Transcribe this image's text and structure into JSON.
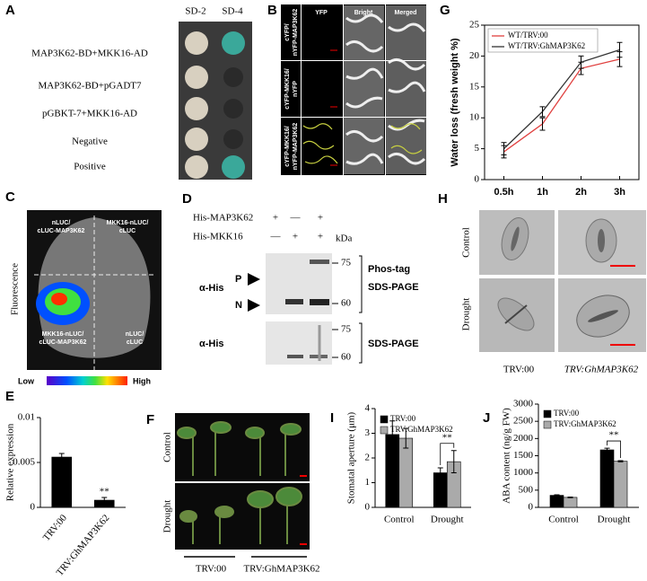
{
  "panels": {
    "A": {
      "label": "A",
      "columns": [
        "SD-2",
        "SD-4"
      ],
      "rows": [
        "MAP3K62-BD+MKK16-AD",
        "MAP3K62-BD+pGADT7",
        "pGBKT-7+MKK16-AD",
        "Negative",
        "Positive"
      ]
    },
    "B": {
      "label": "B",
      "columns": [
        "YFP",
        "Bright",
        "Merged"
      ],
      "rows": [
        [
          "cYFP/",
          "nYFP-MAP3K62"
        ],
        [
          "cYFP-MKK16/",
          "nYFP"
        ],
        [
          "cYFP-MKK16/",
          "nYFP-MAP3K62"
        ]
      ]
    },
    "C": {
      "label": "C",
      "quadrants": [
        [
          "nLUC/",
          "cLUC-MAP3K62"
        ],
        [
          "MKK16-nLUC/",
          "cLUC"
        ],
        [
          "MKK16-nLUC/",
          "cLUC-MAP3K62"
        ],
        [
          "nLUC/",
          "cLUC"
        ]
      ],
      "axis_label": "Fluorescence",
      "scale": [
        "Low",
        "High"
      ]
    },
    "D": {
      "label": "D",
      "proteins": [
        "His-MAP3K62",
        "His-MKK16"
      ],
      "lanes": [
        [
          "+",
          "—",
          "+"
        ],
        [
          "—",
          "+",
          "+"
        ]
      ],
      "unit": "kDa",
      "blots": [
        {
          "antibody": "α-His",
          "markers": [
            "75",
            "60"
          ],
          "method": [
            "Phos-tag",
            "SDS-PAGE"
          ],
          "bands": [
            "P",
            "N"
          ]
        },
        {
          "antibody": "α-His",
          "markers": [
            "75",
            "60"
          ],
          "method": [
            "SDS-PAGE"
          ]
        }
      ]
    },
    "F": {
      "label": "F",
      "rows": [
        "Control",
        "Drought"
      ],
      "columns": [
        "TRV:00",
        "TRV:GhMAP3K62"
      ]
    },
    "H": {
      "label": "H",
      "rows": [
        "Control",
        "Drought"
      ],
      "columns": [
        "TRV:00",
        "TRV:GhMAP3K62"
      ]
    }
  },
  "chart_data": [
    {
      "type": "line",
      "panel": "G",
      "y_label": "Water loss (fresh weight %)",
      "categories": [
        "0.5h",
        "1h",
        "2h",
        "3h"
      ],
      "series": [
        {
          "name": "WT/TRV:00",
          "color": "#e0403f",
          "values": [
            4.5,
            9,
            18,
            19.5
          ],
          "errors": [
            1,
            1,
            1,
            1.2
          ]
        },
        {
          "name": "WT/TRV:GhMAP3K62",
          "color": "#333333",
          "values": [
            5,
            11,
            19,
            21
          ],
          "errors": [
            1,
            0.8,
            1,
            1.2
          ]
        }
      ],
      "ylim": [
        0,
        25
      ],
      "yticks": [
        0,
        5,
        10,
        15,
        20,
        25
      ]
    },
    {
      "type": "bar",
      "panel": "E",
      "y_label": "Relative expression",
      "categories": [
        "TRV:00",
        "TRV:GhMAP3K62"
      ],
      "series": [
        {
          "color": "#000000",
          "values": [
            0.0056,
            0.0008
          ],
          "errors": [
            0.0004,
            0.0003
          ]
        }
      ],
      "ylim": [
        0,
        0.01
      ],
      "yticks": [
        0,
        0.005,
        0.01
      ],
      "annotation": "**"
    },
    {
      "type": "bar",
      "panel": "I",
      "y_label": "Stomatal aperture (μm)",
      "categories": [
        "Control",
        "Drought"
      ],
      "series": [
        {
          "name": "TRV:00",
          "color": "#000000",
          "values": [
            2.95,
            1.4
          ],
          "errors": [
            0.55,
            0.2
          ]
        },
        {
          "name": "TRV:GhMAP3K62",
          "color": "#aaaaaa",
          "values": [
            2.8,
            1.85
          ],
          "errors": [
            0.4,
            0.45
          ]
        }
      ],
      "ylim": [
        0,
        4
      ],
      "yticks": [
        0,
        1,
        2,
        3,
        4
      ],
      "annotation": "**"
    },
    {
      "type": "bar",
      "panel": "J",
      "y_label": "ABA content (ng/g FW)",
      "categories": [
        "Control",
        "Drought"
      ],
      "series": [
        {
          "name": "TRV:00",
          "color": "#000000",
          "values": [
            350,
            1670
          ],
          "errors": [
            15,
            50
          ]
        },
        {
          "name": "TRV:GhMAP3K62",
          "color": "#aaaaaa",
          "values": [
            290,
            1340
          ],
          "errors": [
            10,
            15
          ]
        }
      ],
      "ylim": [
        0,
        3000
      ],
      "yticks": [
        0,
        500,
        1000,
        1500,
        2000,
        2500,
        3000
      ],
      "annotation": "**"
    }
  ]
}
